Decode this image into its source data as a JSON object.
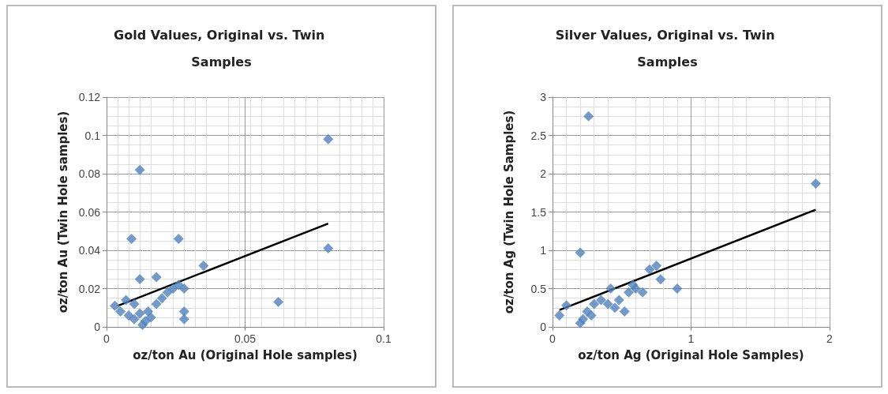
{
  "chart_data": [
    {
      "type": "scatter",
      "title": "Gold Values, Original vs. Twin Samples",
      "xlabel": "oz/ton Au (Original Hole samples)",
      "ylabel": "oz/ton Au (Twin Hole samples)",
      "xlim": [
        0,
        0.1
      ],
      "xticks": [
        0,
        0.05,
        0.1
      ],
      "ylim": [
        0,
        0.12
      ],
      "yticks": [
        0,
        0.02,
        0.04,
        0.06,
        0.08,
        0.1,
        0.12
      ],
      "grid": true,
      "marker": "diamond",
      "series": [
        {
          "color": "#4f81bd",
          "x": [
            0.08,
            0.012,
            0.009,
            0.026,
            0.08,
            0.035,
            0.062,
            0.012,
            0.018,
            0.028,
            0.026,
            0.028,
            0.028,
            0.003,
            0.005,
            0.008,
            0.01,
            0.012,
            0.014,
            0.015,
            0.018,
            0.02,
            0.022,
            0.016,
            0.01,
            0.007,
            0.013,
            0.024
          ],
          "values": [
            0.098,
            0.082,
            0.046,
            0.046,
            0.041,
            0.032,
            0.013,
            0.025,
            0.026,
            0.02,
            0.022,
            0.008,
            0.004,
            0.011,
            0.008,
            0.006,
            0.004,
            0.007,
            0.003,
            0.008,
            0.012,
            0.015,
            0.018,
            0.005,
            0.012,
            0.014,
            0.001,
            0.02
          ]
        },
        {
          "type": "line",
          "color": "#000000",
          "marker": "none",
          "x": [
            0.004,
            0.08
          ],
          "values": [
            0.011,
            0.054
          ]
        }
      ]
    },
    {
      "type": "scatter",
      "title": "Silver Values, Original vs. Twin Samples",
      "xlabel": "oz/ton Ag (Original Hole Samples)",
      "ylabel": "oz/ton Ag (Twin Hole Samples)",
      "xlim": [
        0,
        2
      ],
      "xticks": [
        0,
        1,
        2
      ],
      "ylim": [
        0,
        3
      ],
      "yticks": [
        0,
        0.5,
        1,
        1.5,
        2,
        2.5,
        3
      ],
      "grid": true,
      "marker": "diamond",
      "series": [
        {
          "color": "#4f81bd",
          "x": [
            0.26,
            1.9,
            0.2,
            0.9,
            0.75,
            0.7,
            0.78,
            0.6,
            0.65,
            0.55,
            0.52,
            0.4,
            0.35,
            0.42,
            0.3,
            0.25,
            0.22,
            0.2,
            0.05,
            0.1,
            0.45,
            0.48,
            0.58,
            0.28
          ],
          "values": [
            2.75,
            1.87,
            0.97,
            0.5,
            0.8,
            0.75,
            0.62,
            0.5,
            0.45,
            0.45,
            0.2,
            0.3,
            0.35,
            0.5,
            0.3,
            0.2,
            0.1,
            0.05,
            0.15,
            0.28,
            0.25,
            0.35,
            0.55,
            0.15
          ]
        },
        {
          "type": "line",
          "color": "#000000",
          "marker": "none",
          "x": [
            0.05,
            1.9
          ],
          "values": [
            0.22,
            1.53
          ]
        }
      ]
    }
  ]
}
